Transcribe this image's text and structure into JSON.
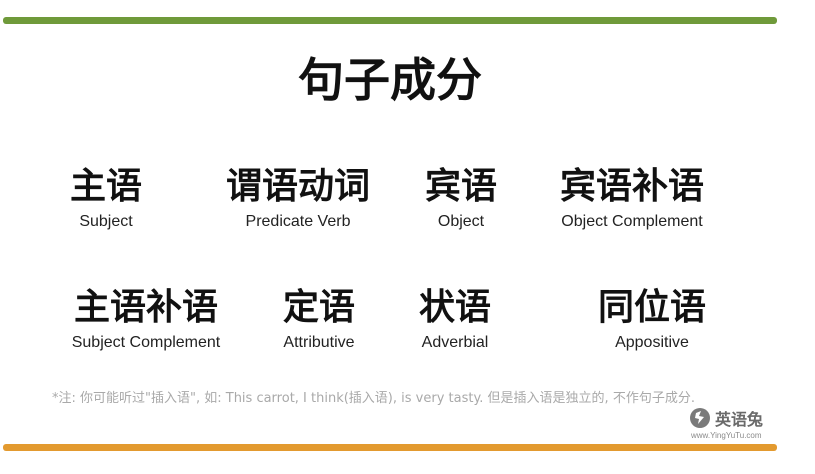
{
  "title": "句子成分",
  "row1": [
    {
      "cn": "主语",
      "en": "Subject"
    },
    {
      "cn": "谓语动词",
      "en": "Predicate Verb"
    },
    {
      "cn": "宾语",
      "en": "Object"
    },
    {
      "cn": "宾语补语",
      "en": "Object Complement"
    }
  ],
  "row2": [
    {
      "cn": "主语补语",
      "en": "Subject Complement"
    },
    {
      "cn": "定语",
      "en": "Attributive"
    },
    {
      "cn": "状语",
      "en": "Adverbial"
    },
    {
      "cn": "同位语",
      "en": "Appositive"
    }
  ],
  "note": "*注: 你可能听过\"插入语\", 如: This carrot, I think(插入语), is very tasty. 但是插入语是独立的, 不作句子成分.",
  "brand": {
    "name": "英语兔",
    "url": "www.YingYuTu.com",
    "logo_icon": "rabbit-logo-icon"
  },
  "colors": {
    "top_bar": "#6f9a3a",
    "bottom_bar": "#e39a2f",
    "note": "#a9a9a9"
  }
}
